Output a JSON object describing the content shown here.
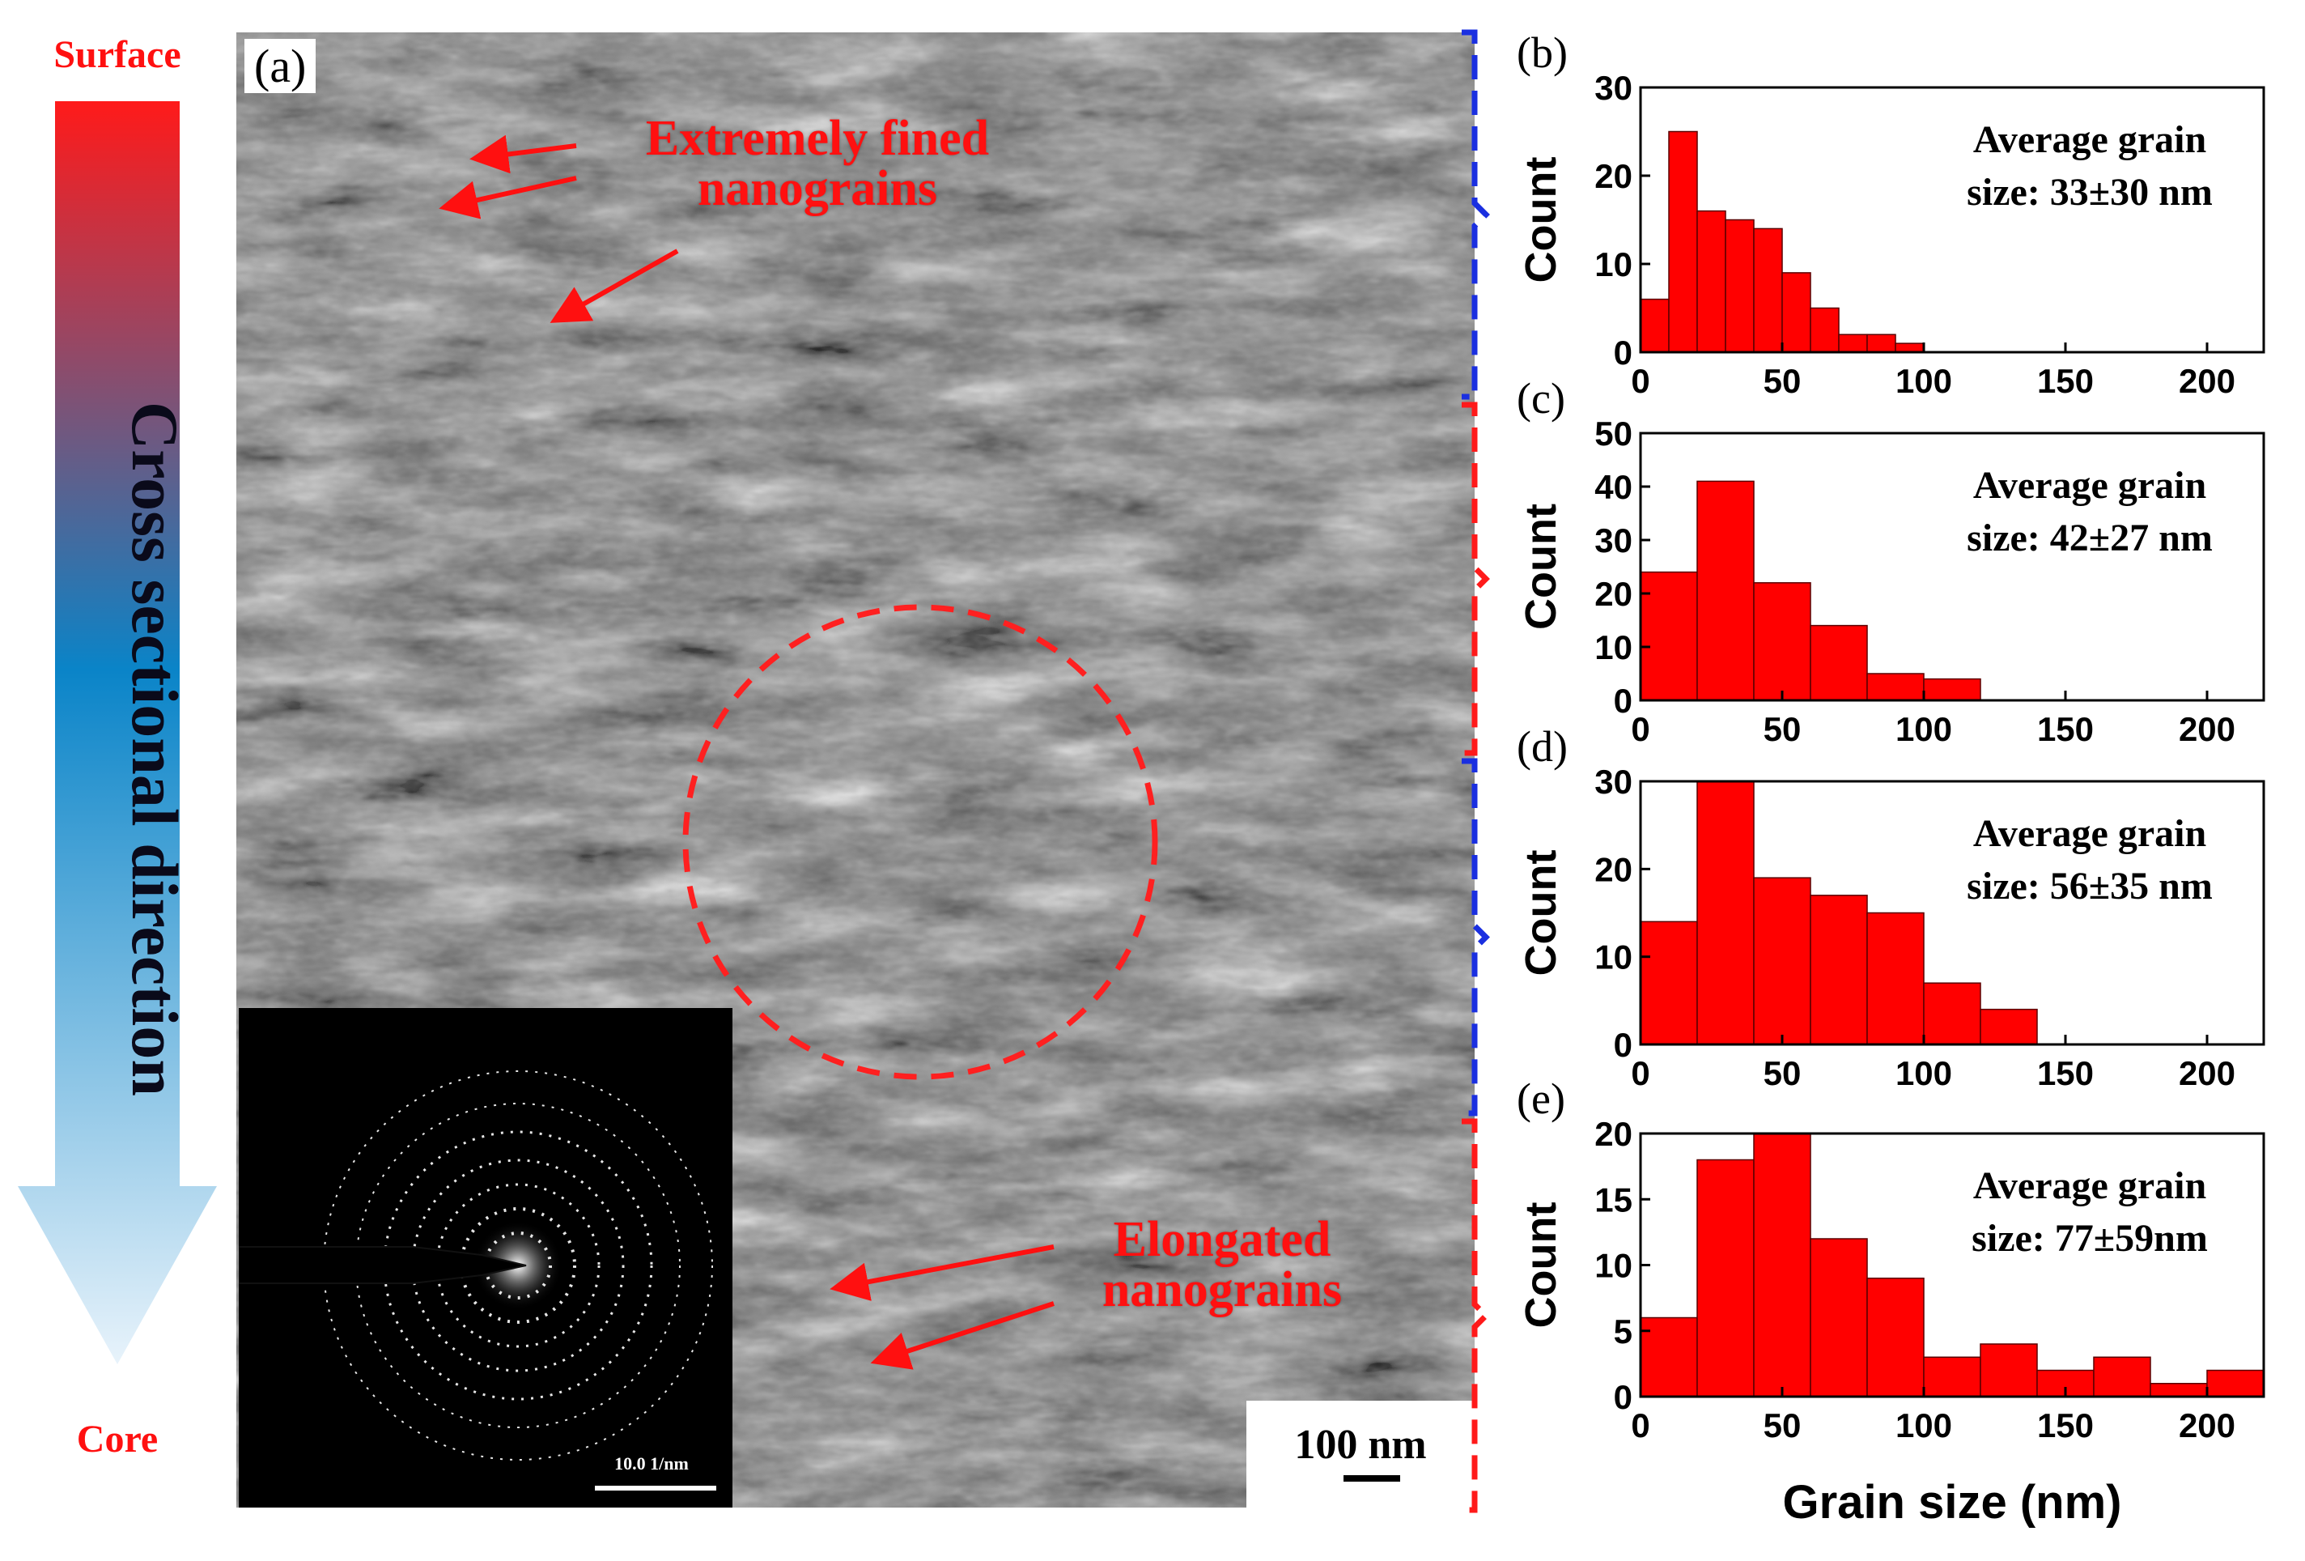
{
  "arrow": {
    "top_label": "Surface",
    "bottom_label": "Core",
    "direction_label": "Cross sectional direction",
    "colors": {
      "surface": "#ff1a1a",
      "middle": "#0a84c8",
      "core": "#e8f3fb"
    }
  },
  "tem": {
    "panel_label": "(a)",
    "annotation_fine": "Extremely fined nanograins",
    "annotation_elongated": "Elongated nanograins",
    "scale_bar": "100 nm",
    "saed_scale": "10.0 1/nm",
    "annotation_color": "#ff1010",
    "circle_color": "#ff2020"
  },
  "chart_data": [
    {
      "type": "bar",
      "panel": "(b)",
      "bin_edges": [
        0,
        10,
        20,
        30,
        40,
        50,
        60,
        70,
        80,
        90,
        100
      ],
      "values": [
        6,
        25,
        16,
        15,
        14,
        9,
        5,
        2,
        2,
        1
      ],
      "annotation": [
        "Average grain",
        "size: 33±30 nm"
      ],
      "xlim": [
        0,
        220
      ],
      "ylim": [
        0,
        30
      ],
      "xticks": [
        0,
        50,
        100,
        150,
        200
      ],
      "yticks": [
        0,
        10,
        20,
        30
      ],
      "ylabel": "Count",
      "xlabel": "",
      "bar_color": "#ff0000",
      "bracket_color": "#1a2fe0"
    },
    {
      "type": "bar",
      "panel": "(c)",
      "bin_edges": [
        0,
        20,
        40,
        60,
        80,
        100,
        120
      ],
      "values": [
        24,
        41,
        22,
        14,
        5,
        4
      ],
      "annotation": [
        "Average grain",
        "size: 42±27 nm"
      ],
      "xlim": [
        0,
        220
      ],
      "ylim": [
        0,
        50
      ],
      "xticks": [
        0,
        50,
        100,
        150,
        200
      ],
      "yticks": [
        0,
        10,
        20,
        30,
        40,
        50
      ],
      "ylabel": "Count",
      "xlabel": "",
      "bar_color": "#ff0000",
      "bracket_color": "#ff1a1a"
    },
    {
      "type": "bar",
      "panel": "(d)",
      "bin_edges": [
        0,
        20,
        40,
        60,
        80,
        100,
        120,
        140
      ],
      "values": [
        14,
        30,
        19,
        17,
        15,
        7,
        4
      ],
      "annotation": [
        "Average grain",
        "size: 56±35 nm"
      ],
      "xlim": [
        0,
        220
      ],
      "ylim": [
        0,
        30
      ],
      "xticks": [
        0,
        50,
        100,
        150,
        200
      ],
      "yticks": [
        0,
        10,
        20,
        30
      ],
      "ylabel": "Count",
      "xlabel": "",
      "bar_color": "#ff0000",
      "bracket_color": "#1a2fe0"
    },
    {
      "type": "bar",
      "panel": "(e)",
      "bin_edges": [
        0,
        20,
        40,
        60,
        80,
        100,
        120,
        140,
        160,
        180,
        200,
        220
      ],
      "values": [
        6,
        18,
        20,
        12,
        9,
        3,
        4,
        2,
        3,
        1,
        2
      ],
      "annotation": [
        "Average grain",
        "size: 77±59nm"
      ],
      "xlim": [
        0,
        220
      ],
      "ylim": [
        0,
        20
      ],
      "xticks": [
        0,
        50,
        100,
        150,
        200
      ],
      "yticks": [
        0,
        5,
        10,
        15,
        20
      ],
      "ylabel": "Count",
      "xlabel": "Grain size (nm)",
      "bar_color": "#ff0000",
      "bracket_color": "#ff1a1a"
    }
  ]
}
